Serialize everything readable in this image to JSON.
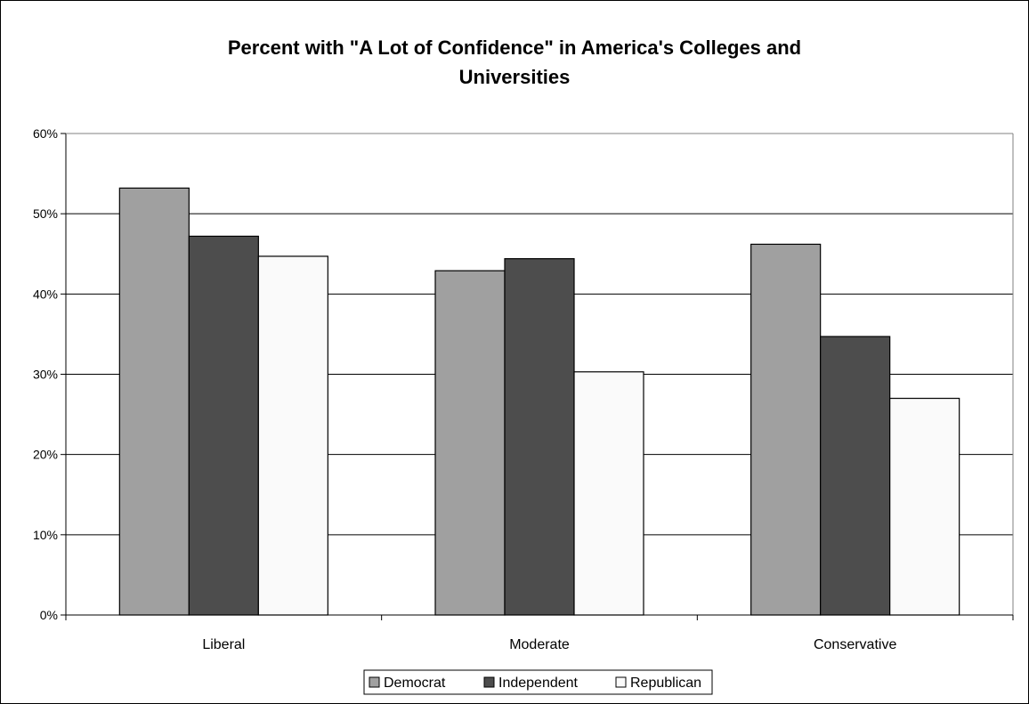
{
  "chart_data": {
    "type": "bar",
    "title_lines": [
      "Percent with \"A Lot of Confidence\" in America's Colleges and",
      "Universities"
    ],
    "categories": [
      "Liberal",
      "Moderate",
      "Conservative"
    ],
    "series": [
      {
        "name": "Democrat",
        "values": [
          53.2,
          42.9,
          46.2
        ],
        "color": "#a0a0a0"
      },
      {
        "name": "Independent",
        "values": [
          47.2,
          44.4,
          34.7
        ],
        "color": "#4d4d4d"
      },
      {
        "name": "Republican",
        "values": [
          44.7,
          30.3,
          27.0
        ],
        "color": "#fafafa"
      }
    ],
    "ylim": [
      0,
      60
    ],
    "yticks": [
      0,
      10,
      20,
      30,
      40,
      50,
      60
    ],
    "ytick_labels": [
      "0%",
      "10%",
      "20%",
      "30%",
      "40%",
      "50%",
      "60%"
    ],
    "grid": true,
    "legend_position": "bottom"
  }
}
